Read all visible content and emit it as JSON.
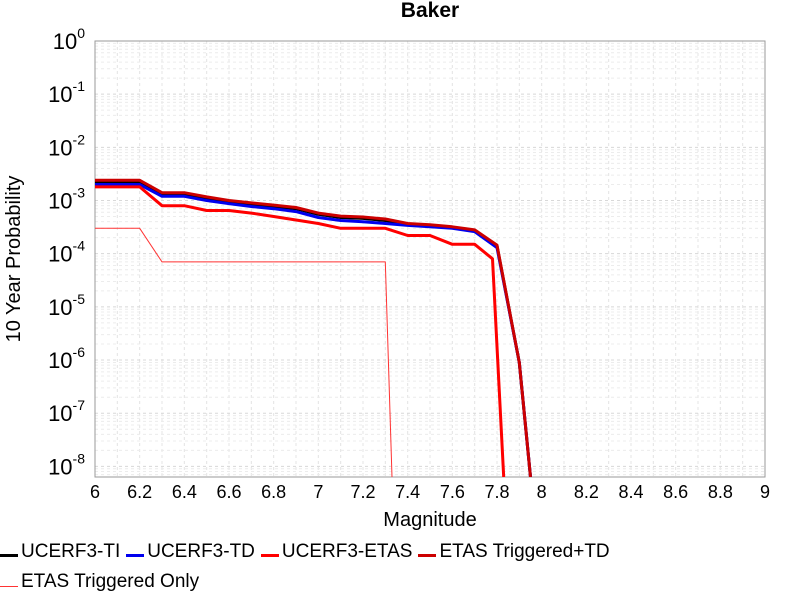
{
  "chart_data": {
    "type": "line",
    "title": "Baker",
    "xlabel": "Magnitude",
    "ylabel": "10 Year Probability",
    "xlim": [
      6,
      9
    ],
    "ylim_log10": [
      -8.2,
      0
    ],
    "yscale": "log",
    "grid": true,
    "legend_position": "bottom",
    "x_ticks": [
      "6",
      "6.2",
      "6.4",
      "6.6",
      "6.8",
      "7",
      "7.2",
      "7.4",
      "7.6",
      "7.8",
      "8",
      "8.2",
      "8.4",
      "8.6",
      "8.8",
      "9"
    ],
    "y_ticks": [
      {
        "base": "10",
        "exp": "0",
        "value": 1
      },
      {
        "base": "10",
        "exp": "-1",
        "value": 0.1
      },
      {
        "base": "10",
        "exp": "-2",
        "value": 0.01
      },
      {
        "base": "10",
        "exp": "-3",
        "value": 0.001
      },
      {
        "base": "10",
        "exp": "-4",
        "value": 0.0001
      },
      {
        "base": "10",
        "exp": "-5",
        "value": 1e-05
      },
      {
        "base": "10",
        "exp": "-6",
        "value": 1e-06
      },
      {
        "base": "10",
        "exp": "-7",
        "value": 1e-07
      },
      {
        "base": "10",
        "exp": "-8",
        "value": 1e-08
      }
    ],
    "series": [
      {
        "name": "UCERF3-TI",
        "color": "#000000",
        "width": 3,
        "x": [
          6.0,
          6.2,
          6.3,
          6.4,
          6.5,
          6.6,
          6.7,
          6.8,
          6.9,
          7.0,
          7.1,
          7.2,
          7.3,
          7.4,
          7.5,
          7.6,
          7.7,
          7.8,
          7.9,
          7.95
        ],
        "y": [
          0.0022,
          0.0022,
          0.0013,
          0.0013,
          0.0011,
          0.00095,
          0.00085,
          0.00078,
          0.0007,
          0.00055,
          0.00048,
          0.00046,
          0.00042,
          0.00036,
          0.00034,
          0.00031,
          0.00027,
          0.00014,
          9e-07,
          1e-09
        ]
      },
      {
        "name": "UCERF3-TD",
        "color": "#0000ee",
        "width": 3,
        "x": [
          6.0,
          6.2,
          6.3,
          6.4,
          6.5,
          6.6,
          6.7,
          6.8,
          6.9,
          7.0,
          7.1,
          7.2,
          7.3,
          7.4,
          7.5,
          7.6,
          7.7,
          7.8,
          7.9,
          7.95
        ],
        "y": [
          0.002,
          0.002,
          0.0012,
          0.0012,
          0.001,
          0.00087,
          0.00077,
          0.0007,
          0.00062,
          0.00048,
          0.00042,
          0.0004,
          0.00037,
          0.00034,
          0.00032,
          0.0003,
          0.00026,
          0.00013,
          9e-07,
          1e-09
        ]
      },
      {
        "name": "UCERF3-ETAS",
        "color": "#ff0000",
        "width": 3,
        "x": [
          6.0,
          6.2,
          6.3,
          6.4,
          6.5,
          6.6,
          6.7,
          6.8,
          6.9,
          7.0,
          7.1,
          7.2,
          7.3,
          7.4,
          7.5,
          7.6,
          7.7,
          7.78,
          7.83
        ],
        "y": [
          0.0018,
          0.0018,
          0.0008,
          0.0008,
          0.00065,
          0.00065,
          0.00058,
          0.0005,
          0.00043,
          0.00037,
          0.0003,
          0.0003,
          0.0003,
          0.00022,
          0.00022,
          0.00015,
          0.00015,
          8e-05,
          1e-09
        ]
      },
      {
        "name": "ETAS Triggered+TD",
        "color": "#cc0000",
        "width": 3,
        "x": [
          6.0,
          6.2,
          6.3,
          6.4,
          6.5,
          6.6,
          6.7,
          6.8,
          6.9,
          7.0,
          7.1,
          7.2,
          7.3,
          7.4,
          7.5,
          7.6,
          7.7,
          7.8,
          7.9,
          7.95
        ],
        "y": [
          0.0024,
          0.0024,
          0.0014,
          0.0014,
          0.00117,
          0.001,
          0.0009,
          0.00082,
          0.00074,
          0.00058,
          0.00051,
          0.00049,
          0.00045,
          0.00037,
          0.00035,
          0.00032,
          0.00028,
          0.000145,
          9e-07,
          1e-09
        ]
      },
      {
        "name": "ETAS Triggered Only",
        "color": "#ff3333",
        "width": 1,
        "x": [
          6.0,
          6.2,
          6.3,
          7.3,
          7.33
        ],
        "y": [
          0.0003,
          0.0003,
          7e-05,
          7e-05,
          1e-09
        ]
      }
    ]
  }
}
